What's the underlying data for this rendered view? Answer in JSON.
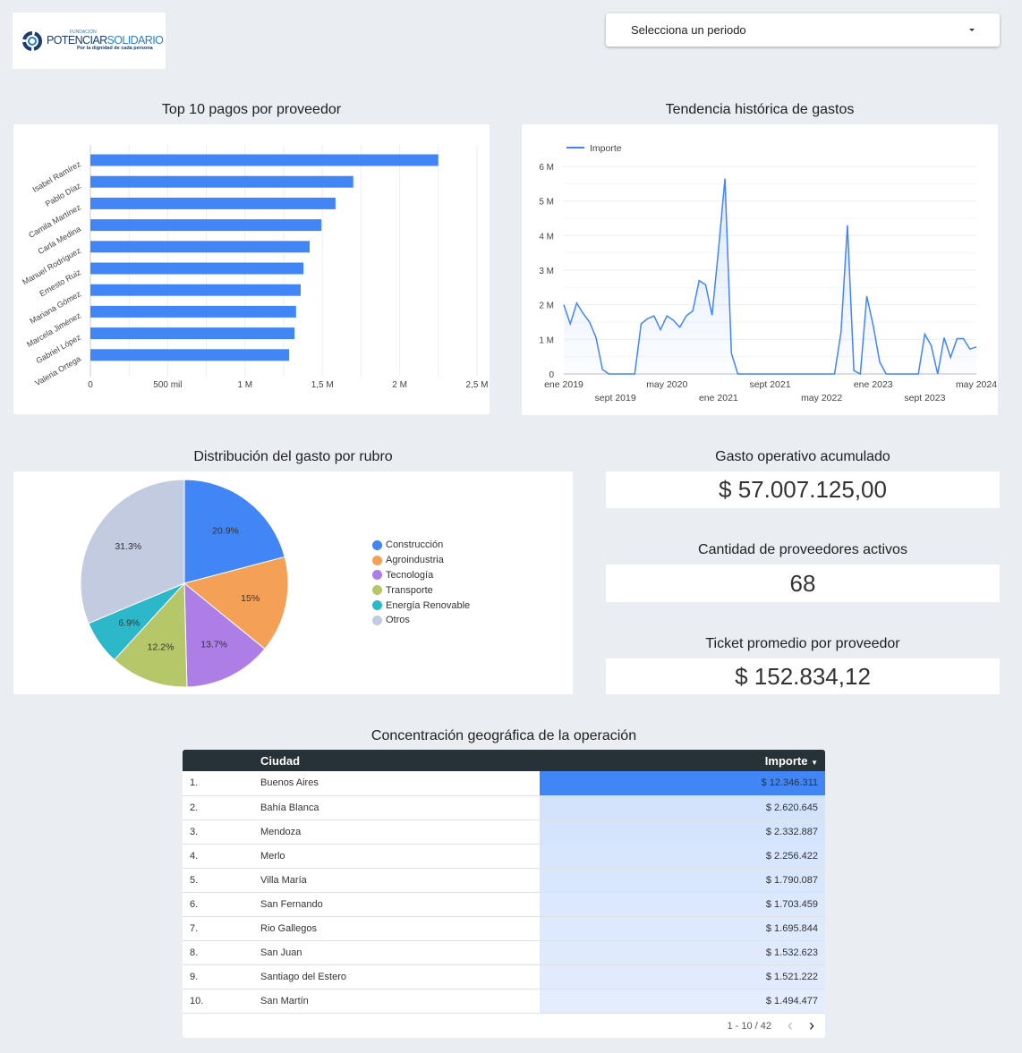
{
  "logo": {
    "small": "FUNDACIÓN",
    "main_a": "POTENCIAR",
    "main_b": "SOLIDARIO",
    "tagline": "Por la dignidad de cada persona"
  },
  "period_dropdown": {
    "placeholder": "Selecciona un periodo"
  },
  "colors": {
    "accent": "#4285f4",
    "background": "#eaedf1",
    "table_header": "#263238"
  },
  "bar_chart": {
    "title": "Top 10 pagos por proveedor"
  },
  "line_chart": {
    "title": "Tendencia histórica de gastos"
  },
  "pie_chart": {
    "title": "Distribución del gasto por rubro"
  },
  "chart_data": [
    {
      "type": "bar",
      "orientation": "horizontal",
      "categories": [
        "Isabel Ramírez",
        "Pablo Díaz",
        "Camila Martínez",
        "Carla Medina",
        "Manuel Rodríguez",
        "Ernesto Ruiz",
        "Mariana Gómez",
        "Marcela Jiménez",
        "Gabriel López",
        "Valeria Ortega"
      ],
      "values": [
        2250000,
        1700000,
        1585000,
        1494000,
        1418000,
        1378000,
        1360000,
        1330000,
        1320000,
        1285000
      ],
      "xlim": [
        0,
        2500000
      ],
      "xticks": [
        0,
        500000,
        1000000,
        1500000,
        2000000,
        2500000
      ],
      "xtick_labels": [
        "0",
        "500 mil",
        "1 M",
        "1,5 M",
        "2 M",
        "2,5 M"
      ],
      "grid": true,
      "color": "#4285f4"
    },
    {
      "type": "area",
      "series": [
        {
          "name": "Importe",
          "color": "#4285f4",
          "x": [
            "2019-01",
            "2019-02",
            "2019-03",
            "2019-04",
            "2019-05",
            "2019-06",
            "2019-07",
            "2019-08",
            "2019-09",
            "2019-10",
            "2019-11",
            "2019-12",
            "2020-01",
            "2020-02",
            "2020-03",
            "2020-04",
            "2020-05",
            "2020-06",
            "2020-07",
            "2020-08",
            "2020-09",
            "2020-10",
            "2020-11",
            "2020-12",
            "2021-01",
            "2021-02",
            "2021-03",
            "2021-04",
            "2021-05",
            "2021-06",
            "2021-07",
            "2021-08",
            "2021-09",
            "2021-10",
            "2021-11",
            "2021-12",
            "2022-01",
            "2022-02",
            "2022-03",
            "2022-04",
            "2022-05",
            "2022-06",
            "2022-07",
            "2022-08",
            "2022-09",
            "2022-10",
            "2022-11",
            "2022-12",
            "2023-01",
            "2023-02",
            "2023-03",
            "2023-04",
            "2023-05",
            "2023-06",
            "2023-07",
            "2023-08",
            "2023-09",
            "2023-10",
            "2023-11",
            "2023-12",
            "2024-01",
            "2024-02",
            "2024-03",
            "2024-04",
            "2024-05"
          ],
          "values": [
            2000000,
            1450000,
            2050000,
            1750000,
            1500000,
            1050000,
            130000,
            0,
            0,
            0,
            0,
            0,
            1450000,
            1600000,
            1680000,
            1280000,
            1680000,
            1550000,
            1350000,
            1680000,
            1820000,
            2700000,
            2580000,
            1700000,
            3600000,
            5650000,
            600000,
            0,
            0,
            0,
            0,
            0,
            0,
            0,
            0,
            0,
            0,
            0,
            0,
            0,
            0,
            0,
            0,
            1200000,
            4300000,
            100000,
            0,
            2250000,
            1400000,
            350000,
            0,
            0,
            0,
            0,
            0,
            0,
            1150000,
            820000,
            0,
            1050000,
            480000,
            1020000,
            1020000,
            720000,
            780000
          ]
        }
      ],
      "ylim": [
        0,
        6000000
      ],
      "yticks": [
        0,
        1000000,
        2000000,
        3000000,
        4000000,
        5000000,
        6000000
      ],
      "ytick_labels": [
        "0",
        "1 M",
        "2 M",
        "3 M",
        "4 M",
        "5 M",
        "6 M"
      ],
      "xtick_labels": [
        "ene 2019",
        "sept 2019",
        "may 2020",
        "ene 2021",
        "sept 2021",
        "may 2022",
        "ene 2023",
        "sept 2023",
        "may 2024"
      ],
      "legend": "top-left",
      "grid": true
    },
    {
      "type": "pie",
      "categories": [
        "Construcción",
        "Agroindustria",
        "Tecnología",
        "Transporte",
        "Energía Renovable",
        "Otros"
      ],
      "values": [
        20.9,
        15,
        13.7,
        12.2,
        6.9,
        31.3
      ],
      "labels": [
        "20.9%",
        "15%",
        "13.7%",
        "12.2%",
        "6.9%",
        "31.3%"
      ],
      "colors": [
        "#4285f4",
        "#f4a056",
        "#ac7ee6",
        "#b6c769",
        "#2db8c9",
        "#c3cbe0"
      ],
      "legend": "right"
    }
  ],
  "kpis": [
    {
      "title": "Gasto operativo acumulado",
      "value": "$ 57.007.125,00"
    },
    {
      "title": "Cantidad de proveedores activos",
      "value": "68"
    },
    {
      "title": "Ticket promedio por proveedor",
      "value": "$ 152.834,12"
    }
  ],
  "geo_table": {
    "title": "Concentración geográfica de la operación",
    "headers": {
      "city": "Ciudad",
      "amount": "Importe"
    },
    "rows": [
      {
        "n": "1.",
        "city": "Buenos Aires",
        "amount": "$ 12.346.311"
      },
      {
        "n": "2.",
        "city": "Bahía Blanca",
        "amount": "$ 2.620.645"
      },
      {
        "n": "3.",
        "city": "Mendoza",
        "amount": "$ 2.332.887"
      },
      {
        "n": "4.",
        "city": "Merlo",
        "amount": "$ 2.256.422"
      },
      {
        "n": "5.",
        "city": "Villa María",
        "amount": "$ 1.790.087"
      },
      {
        "n": "6.",
        "city": "San Fernando",
        "amount": "$ 1.703.459"
      },
      {
        "n": "7.",
        "city": "Rio Gallegos",
        "amount": "$ 1.695.844"
      },
      {
        "n": "8.",
        "city": "San Juan",
        "amount": "$ 1.532.623"
      },
      {
        "n": "9.",
        "city": "Santiago del Estero",
        "amount": "$ 1.521.222"
      },
      {
        "n": "10.",
        "city": "San Martín",
        "amount": "$ 1.494.477"
      }
    ],
    "pagination": "1 - 10 / 42"
  }
}
